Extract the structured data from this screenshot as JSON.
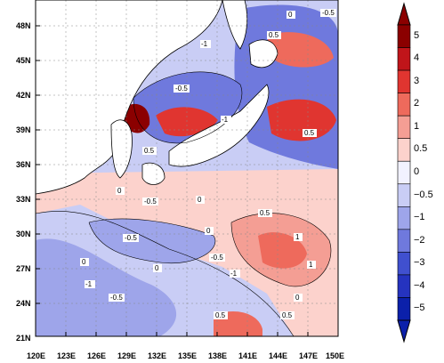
{
  "map": {
    "lat_labels": [
      "48N",
      "45N",
      "42N",
      "39N",
      "36N",
      "33N",
      "30N",
      "27N",
      "24N",
      "21N"
    ],
    "lon_labels": [
      "120E",
      "123E",
      "126E",
      "129E",
      "132E",
      "135E",
      "138E",
      "141E",
      "144E",
      "147E",
      "150E"
    ],
    "contour_labels": [
      "-0.5",
      "0",
      "-1",
      "-0.5",
      "-1",
      "0",
      "0.5",
      "-0.5",
      "0",
      "0.5",
      "1",
      "0.5",
      "1",
      "-0.5",
      "0",
      "0.5",
      "-1",
      "0",
      "-0.5",
      "0.5",
      "0",
      "-0.5",
      "-1",
      "0.5",
      "0"
    ]
  },
  "colorbar": {
    "levels": [
      "5",
      "4",
      "3",
      "2",
      "1",
      "0.5",
      "0",
      "−0.5",
      "−1",
      "−2",
      "−3",
      "−4",
      "−5"
    ],
    "colors": [
      "#8b0000",
      "#c0151a",
      "#e03530",
      "#ee6a5c",
      "#f49e94",
      "#fcd2cc",
      "#f2f2ff",
      "#c9cdf5",
      "#9ea5ea",
      "#6f79dd",
      "#4050cf",
      "#2533bf",
      "#0b20aa"
    ]
  },
  "palette": {
    "land": "#ffffff",
    "sea_deep_blue": "#0b20aa",
    "coast": "#000000"
  }
}
